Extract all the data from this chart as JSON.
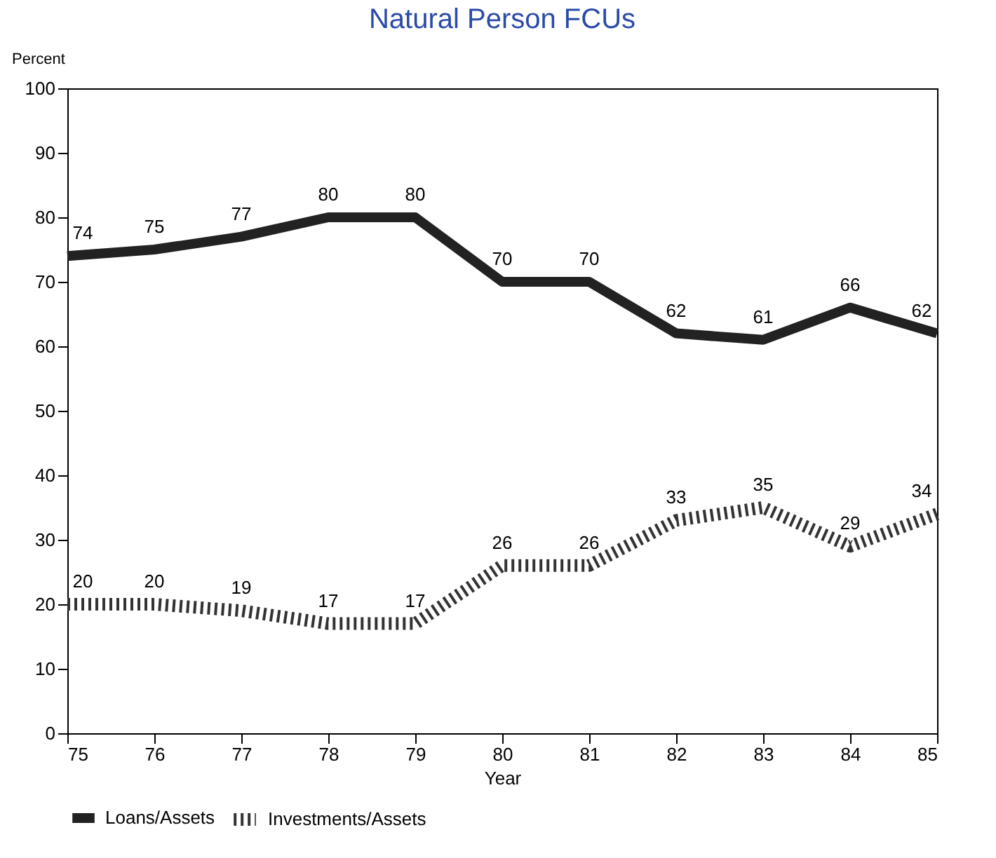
{
  "chart_data": {
    "type": "line",
    "title": "Natural Person FCUs",
    "xlabel": "Year",
    "ylabel": "Percent",
    "x": [
      75,
      76,
      77,
      78,
      79,
      80,
      81,
      82,
      83,
      84,
      85
    ],
    "series": [
      {
        "name": "Loans/Assets",
        "color": "#222222",
        "line_style": "solid",
        "values": [
          74,
          75,
          77,
          80,
          80,
          70,
          70,
          62,
          61,
          66,
          62
        ]
      },
      {
        "name": "Investments/Assets",
        "color": "#333333",
        "line_style": "dotted",
        "values": [
          20,
          20,
          19,
          17,
          17,
          26,
          26,
          33,
          35,
          29,
          34
        ]
      }
    ],
    "xlim": [
      75,
      85
    ],
    "xticks": [
      75,
      76,
      77,
      78,
      79,
      80,
      81,
      82,
      83,
      84,
      85
    ],
    "ylim": [
      0,
      100
    ],
    "yticks": [
      0,
      10,
      20,
      30,
      40,
      50,
      60,
      70,
      80,
      90,
      100
    ],
    "data_labels": true,
    "grid": false,
    "legend": "bottom"
  }
}
